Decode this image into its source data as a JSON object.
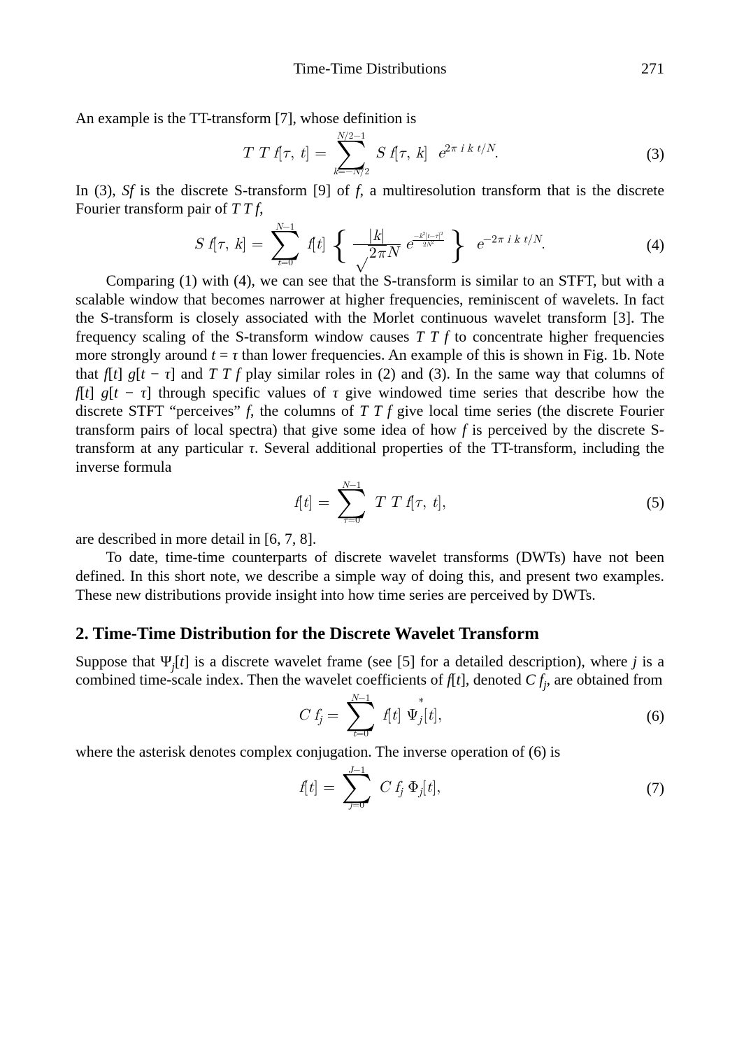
{
  "header": {
    "title": "Time-Time Distributions",
    "page": "271"
  },
  "para1": "An example is the TT-transform [7], whose definition is",
  "eq3": {
    "num": "(3)"
  },
  "para2_a": "In (3), ",
  "para2_b": " is the discrete S-transform [9] of ",
  "para2_c": ", a multiresolution transform that is the discrete Fourier transform pair of ",
  "para2_d": ",",
  "eq4": {
    "num": "(4)"
  },
  "para3_a": "Comparing (1) with (4), we can see that the S-transform is similar to an STFT, but with a scalable window that becomes narrower at higher frequencies, reminiscent of wavelets. In fact the S-transform is closely associated with the Morlet continuous wavelet transform [3]. The frequency scaling of the S-transform window causes ",
  "para3_b": " to concentrate higher frequencies more strongly around ",
  "para3_c": " than lower frequencies. An example of this is shown in Fig. 1b. Note that ",
  "para3_d": " and ",
  "para3_e": " play similar roles in (2) and (3). In the same way that columns of ",
  "para3_f": " through specific values of ",
  "para3_g": " give windowed time series that describe how the discrete STFT “perceives” ",
  "para3_h": ", the columns of ",
  "para3_i": " give local time series (the discrete Fourier transform pairs of local spectra) that give some idea of how ",
  "para3_j": " is perceived by the discrete S-transform at any particular ",
  "para3_k": ". Several additional properties of the TT-transform, including the inverse formula",
  "eq5": {
    "num": "(5)"
  },
  "para4": "are described in more detail in [6, 7, 8].",
  "para5": "To date, time-time counterparts of discrete wavelet transforms (DWTs) have not been defined. In this short note, we describe a simple way of doing this, and present two examples. These new distributions provide insight into how time series are perceived by DWTs.",
  "section2_title": "2. Time-Time Distribution for the Discrete Wavelet Transform",
  "para6_a": "Suppose that ",
  "para6_b": " is a discrete wavelet frame (see [5] for a detailed description), where ",
  "para6_c": " is a combined time-scale index. Then the wavelet coefficients of ",
  "para6_d": ", denoted ",
  "para6_e": ", are obtained from",
  "eq6": {
    "num": "(6)"
  },
  "para7": "where the asterisk denotes complex conjugation. The inverse operation of (6) is",
  "eq7": {
    "num": "(7)"
  }
}
